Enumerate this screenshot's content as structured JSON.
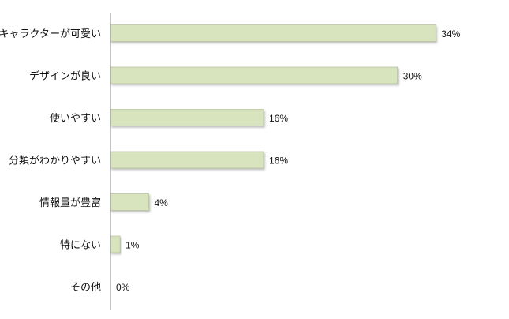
{
  "chart_data": {
    "type": "bar",
    "orientation": "horizontal",
    "categories": [
      "キャラクターが可愛い",
      "デザインが良い",
      "使いやすい",
      "分類がわかりやすい",
      "情報量が豊富",
      "特にない",
      "その他"
    ],
    "values": [
      34,
      30,
      16,
      16,
      4,
      1,
      0
    ],
    "value_labels": [
      "34%",
      "30%",
      "16%",
      "16%",
      "4%",
      "1%",
      "0%"
    ],
    "unit": "%",
    "xlim": [
      0,
      40
    ],
    "grid": false,
    "legend": "none",
    "bar_color": "#d7e4bd",
    "bar_border_color": "#a9b88f",
    "axis_color": "#888888"
  }
}
